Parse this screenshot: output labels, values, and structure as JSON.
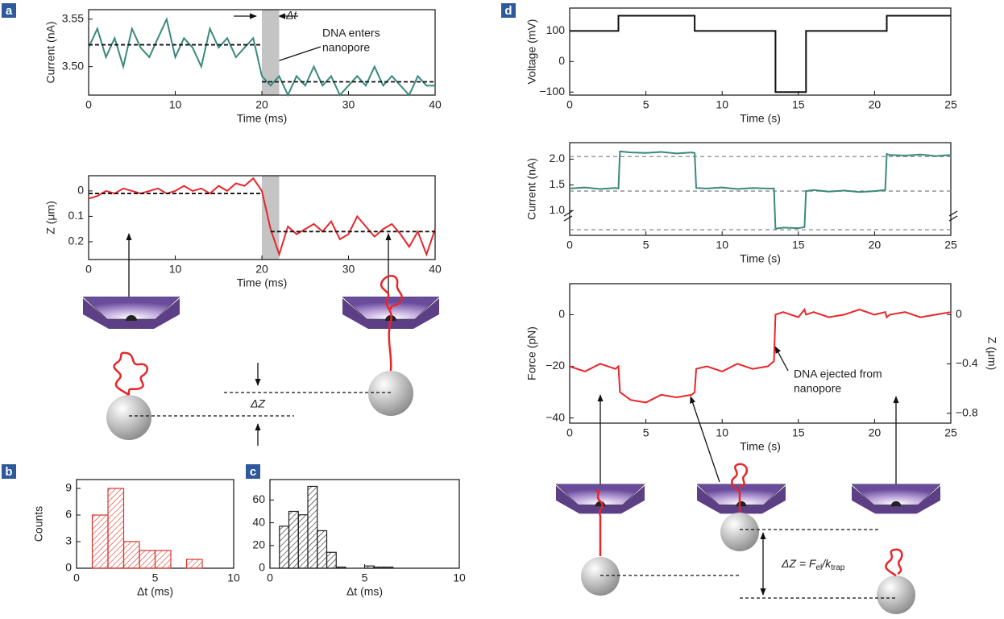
{
  "panels": [
    "a",
    "b",
    "c",
    "d"
  ],
  "diagram": {
    "delta_z": "ΔZ",
    "eq_lhs": "ΔZ = F",
    "eq_sub1": "el",
    "eq_mid": "/k",
    "eq_sub2": "trap"
  },
  "chart_data": [
    {
      "type": "line",
      "xlabel": "Time (ms)",
      "ylabel": "Current (nA)",
      "x": [
        0,
        1,
        2,
        3,
        4,
        5,
        6,
        7,
        8,
        9,
        10,
        11,
        12,
        13,
        14,
        15,
        16,
        17,
        18,
        19,
        20,
        21,
        22,
        23,
        24,
        25,
        26,
        27,
        28,
        29,
        30,
        31,
        32,
        33,
        34,
        35,
        36,
        37,
        38,
        39,
        40
      ],
      "series": [
        {
          "color": "#3a8a7c",
          "values": [
            3.52,
            3.54,
            3.51,
            3.53,
            3.5,
            3.54,
            3.52,
            3.51,
            3.53,
            3.55,
            3.51,
            3.53,
            3.52,
            3.5,
            3.54,
            3.52,
            3.53,
            3.51,
            3.52,
            3.53,
            3.49,
            3.48,
            3.49,
            3.47,
            3.49,
            3.48,
            3.5,
            3.48,
            3.49,
            3.47,
            3.48,
            3.49,
            3.48,
            3.5,
            3.48,
            3.49,
            3.48,
            3.47,
            3.49,
            3.48,
            3.48
          ]
        }
      ],
      "fits": [
        {
          "x": [
            0,
            20
          ],
          "y": [
            3.523,
            3.523
          ]
        },
        {
          "x": [
            20,
            40
          ],
          "y": [
            3.484,
            3.484
          ]
        }
      ],
      "shade": [
        20,
        22
      ],
      "xlim": [
        0,
        40
      ],
      "xticks": [
        0,
        10,
        20,
        30,
        40
      ],
      "ylim": [
        3.47,
        3.56
      ],
      "yticks": [
        {
          "value": 3.5,
          "label": "3.50"
        },
        {
          "value": 3.55,
          "label": "3.55"
        }
      ],
      "annotations": [
        [
          "Δt"
        ],
        [
          "DNA enters",
          "nanopore"
        ]
      ]
    },
    {
      "type": "line",
      "xlabel": "Time (ms)",
      "ylabel": "Z (μm)",
      "x": [
        0,
        1,
        2,
        3,
        4,
        5,
        6,
        7,
        8,
        9,
        10,
        11,
        12,
        13,
        14,
        15,
        16,
        17,
        18,
        19,
        20,
        21,
        22,
        23,
        24,
        25,
        26,
        27,
        28,
        29,
        30,
        31,
        32,
        33,
        34,
        35,
        36,
        37,
        38,
        39,
        40
      ],
      "series": [
        {
          "color": "#e8262a",
          "values": [
            0.03,
            0.02,
            0.0,
            0.01,
            -0.01,
            0.0,
            0.01,
            0.0,
            -0.01,
            0.01,
            0.0,
            -0.02,
            0.0,
            -0.01,
            0.01,
            -0.02,
            0.0,
            -0.03,
            -0.02,
            -0.05,
            0.0,
            0.15,
            0.25,
            0.14,
            0.17,
            0.15,
            0.13,
            0.16,
            0.12,
            0.19,
            0.17,
            0.1,
            0.14,
            0.18,
            0.15,
            0.13,
            0.17,
            0.22,
            0.16,
            0.25,
            0.15
          ]
        }
      ],
      "fits": [
        {
          "x": [
            0,
            20
          ],
          "y": [
            0.01,
            0.01
          ]
        },
        {
          "x": [
            21,
            40
          ],
          "y": [
            0.16,
            0.16
          ]
        }
      ],
      "shade": [
        20,
        22
      ],
      "xlim": [
        0,
        40
      ],
      "xticks": [
        0,
        10,
        20,
        30,
        40
      ],
      "ylim": [
        0.27,
        -0.06
      ],
      "yticks": [
        0,
        0.1,
        0.2
      ]
    },
    {
      "type": "histogram",
      "xlabel": "Δt (ms)",
      "ylabel": "Counts",
      "color": "#d9342b",
      "bins": [
        1,
        2,
        3,
        4,
        5,
        6,
        7,
        8
      ],
      "counts": [
        6,
        9,
        3,
        2,
        2,
        0,
        1
      ],
      "xlim": [
        0,
        10
      ],
      "xticks": [
        0,
        5,
        10
      ],
      "ylim": [
        0,
        10
      ],
      "yticks": [
        0,
        3,
        6,
        9
      ]
    },
    {
      "type": "histogram",
      "xlabel": "Δt (ms)",
      "color": "#222222",
      "bins": [
        0.5,
        1,
        1.5,
        2,
        2.5,
        3,
        3.5,
        4,
        4.5,
        5,
        5.5,
        6,
        6.5
      ],
      "counts": [
        37,
        50,
        47,
        72,
        33,
        14,
        1,
        0,
        0,
        2,
        1,
        1
      ],
      "xlim": [
        0,
        10
      ],
      "xticks": [
        0,
        5,
        10
      ],
      "ylim": [
        0,
        78
      ],
      "yticks": [
        0,
        20,
        40,
        60
      ]
    },
    {
      "type": "line",
      "xlabel": "Time (s)",
      "ylabel": "Voltage (mV)",
      "x": [
        0,
        3.2,
        3.2,
        8.2,
        8.2,
        13.5,
        13.5,
        15.5,
        15.5,
        20.8,
        20.8,
        25
      ],
      "series": [
        {
          "color": "#111111",
          "values": [
            100,
            100,
            150,
            150,
            100,
            100,
            -100,
            -100,
            100,
            100,
            150,
            150
          ]
        }
      ],
      "xlim": [
        0,
        25
      ],
      "xticks": [
        0,
        5,
        10,
        15,
        20,
        25
      ],
      "ylim": [
        -110,
        175
      ],
      "yticks": [
        {
          "value": -100,
          "label": "−100"
        },
        0,
        100
      ]
    },
    {
      "type": "line",
      "xlabel": "Time (s)",
      "ylabel": "Current (nA)",
      "x": [
        0,
        1,
        2,
        3,
        3.2,
        3.3,
        4,
        5,
        6,
        7,
        8,
        8.2,
        8.3,
        9,
        10,
        11,
        12,
        13,
        13.4,
        13.5,
        14,
        15,
        15.4,
        15.5,
        16,
        17,
        18,
        19,
        20,
        20.7,
        20.8,
        21,
        22,
        23,
        24,
        25
      ],
      "series": [
        {
          "color": "#3a8a7c",
          "values": [
            1.43,
            1.45,
            1.42,
            1.44,
            1.43,
            2.15,
            2.13,
            2.12,
            2.14,
            2.11,
            2.13,
            2.12,
            1.44,
            1.43,
            1.45,
            1.42,
            1.44,
            1.43,
            1.43,
            0.65,
            0.67,
            0.66,
            0.68,
            1.38,
            1.4,
            1.37,
            1.39,
            1.36,
            1.38,
            1.4,
            2.1,
            2.08,
            2.07,
            2.09,
            2.06,
            2.08
          ]
        }
      ],
      "hlines": [
        2.05,
        1.38,
        0.63
      ],
      "xlim": [
        0,
        25
      ],
      "xticks": [
        0,
        5,
        10,
        15,
        20,
        25
      ],
      "ylim": [
        0.52,
        2.32
      ],
      "yticks": [
        {
          "value": 1,
          "label": "1.0"
        },
        {
          "value": 1.5,
          "label": "1.5"
        },
        {
          "value": 2,
          "label": "2.0"
        }
      ]
    },
    {
      "type": "line",
      "xlabel": "Time (s)",
      "ylabel": "Force (pN)",
      "y2label": "Z (μm)",
      "x": [
        0,
        1,
        2,
        3,
        3.2,
        3.3,
        4,
        5,
        6,
        7,
        8,
        8.2,
        8.3,
        9,
        10,
        11,
        12,
        13,
        13.4,
        13.5,
        14,
        15,
        15.4,
        15.5,
        16,
        17,
        18,
        19,
        20,
        20.7,
        20.8,
        21,
        22,
        23,
        24,
        25
      ],
      "series": [
        {
          "color": "#e8262a",
          "values": [
            -20,
            -22,
            -19,
            -21,
            -20,
            -30,
            -33,
            -34,
            -31,
            -32,
            -31,
            -30,
            -21,
            -20,
            -22,
            -19,
            -21,
            -20,
            -18,
            0,
            1,
            -1,
            2,
            0,
            1,
            -1,
            0,
            2,
            0,
            1,
            -1,
            0,
            1,
            -1,
            0,
            1
          ]
        }
      ],
      "xlim": [
        0,
        25
      ],
      "xticks": [
        0,
        5,
        10,
        15,
        20,
        25
      ],
      "ylim": [
        -42,
        12
      ],
      "yticks": [
        {
          "value": -40,
          "label": "−40"
        },
        {
          "value": -20,
          "label": "−20"
        },
        0
      ],
      "y2lim": [
        -0.88,
        0.25
      ],
      "y2ticks": [
        {
          "value": -0.8,
          "label": "−0.8"
        },
        {
          "value": -0.4,
          "label": "−0.4"
        },
        0
      ],
      "annotations": [
        [
          "DNA ejected from",
          "nanopore"
        ]
      ]
    }
  ]
}
